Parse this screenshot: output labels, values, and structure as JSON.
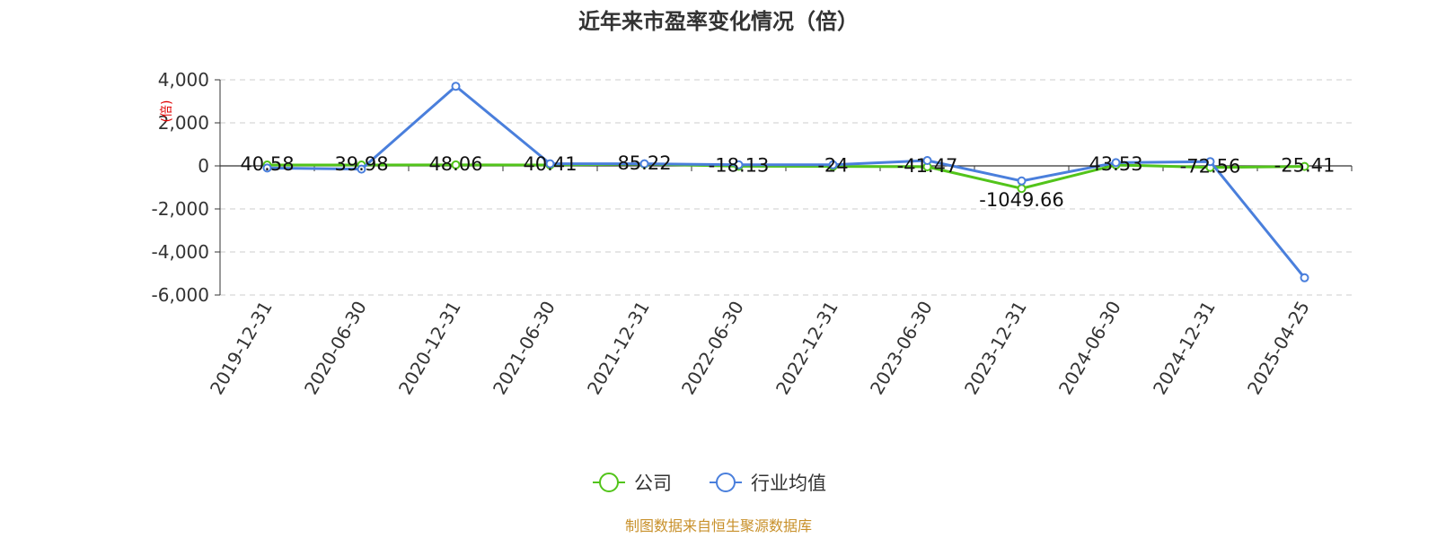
{
  "chart_data": {
    "type": "line",
    "title": "近年来市盈率变化情况（倍）",
    "ylabel": "(倍)",
    "ylim": [
      -6000,
      4000
    ],
    "yticks": [
      4000,
      2000,
      0,
      -2000,
      -4000,
      -6000
    ],
    "ytick_labels": [
      "4,000",
      "2,000",
      "0",
      "-2,000",
      "-4,000",
      "-6,000"
    ],
    "categories": [
      "2019-12-31",
      "2020-06-30",
      "2020-12-31",
      "2021-06-30",
      "2021-12-31",
      "2022-06-30",
      "2022-12-31",
      "2023-06-30",
      "2023-12-31",
      "2024-06-30",
      "2024-12-31",
      "2025-04-25"
    ],
    "grid": true,
    "legend_position": "bottom",
    "series": [
      {
        "name": "公司",
        "color": "#52c41a",
        "values": [
          40.58,
          39.98,
          48.06,
          40.41,
          85.22,
          -18.13,
          -24,
          -41.47,
          -1049.66,
          43.53,
          -72.56,
          -25.41
        ],
        "labels": [
          "40.58",
          "39.98",
          "48.06",
          "40.41",
          "85.22",
          "-18.13",
          "-24",
          "-41.47",
          "-1049.66",
          "43.53",
          "-72.56",
          "-25.41"
        ]
      },
      {
        "name": "行业均值",
        "color": "#4a7fdc",
        "values": [
          -100,
          -150,
          3700,
          100,
          100,
          50,
          50,
          250,
          -700,
          150,
          200,
          -5200
        ]
      }
    ]
  },
  "footer": {
    "source": "制图数据来自恒生聚源数据库"
  }
}
